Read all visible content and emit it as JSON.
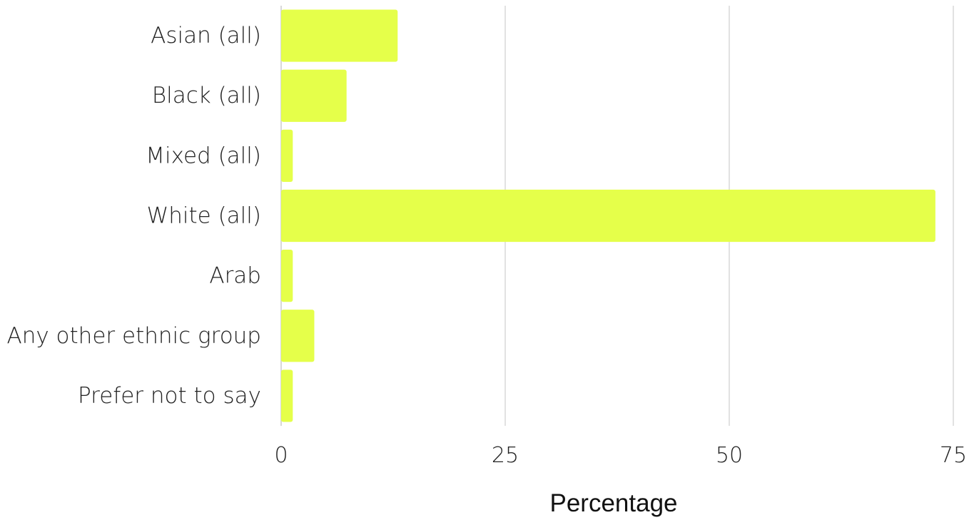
{
  "chart_data": {
    "type": "bar",
    "orientation": "horizontal",
    "categories": [
      "Asian (all)",
      "Black (all)",
      "Mixed (all)",
      "White (all)",
      "Arab",
      "Any other ethnic group",
      "Prefer not to say"
    ],
    "values": [
      13,
      7.3,
      1.3,
      73,
      1.3,
      3.7,
      1.3
    ],
    "xlabel": "Percentage",
    "ylabel": "",
    "title": "",
    "xlim": [
      0,
      75
    ],
    "xticks": [
      0,
      25,
      50,
      75
    ],
    "xtick_labels": [
      "0",
      "25",
      "50",
      "75"
    ],
    "grid": "vertical",
    "legend": "none",
    "bar_color": "#e5ff4a"
  }
}
